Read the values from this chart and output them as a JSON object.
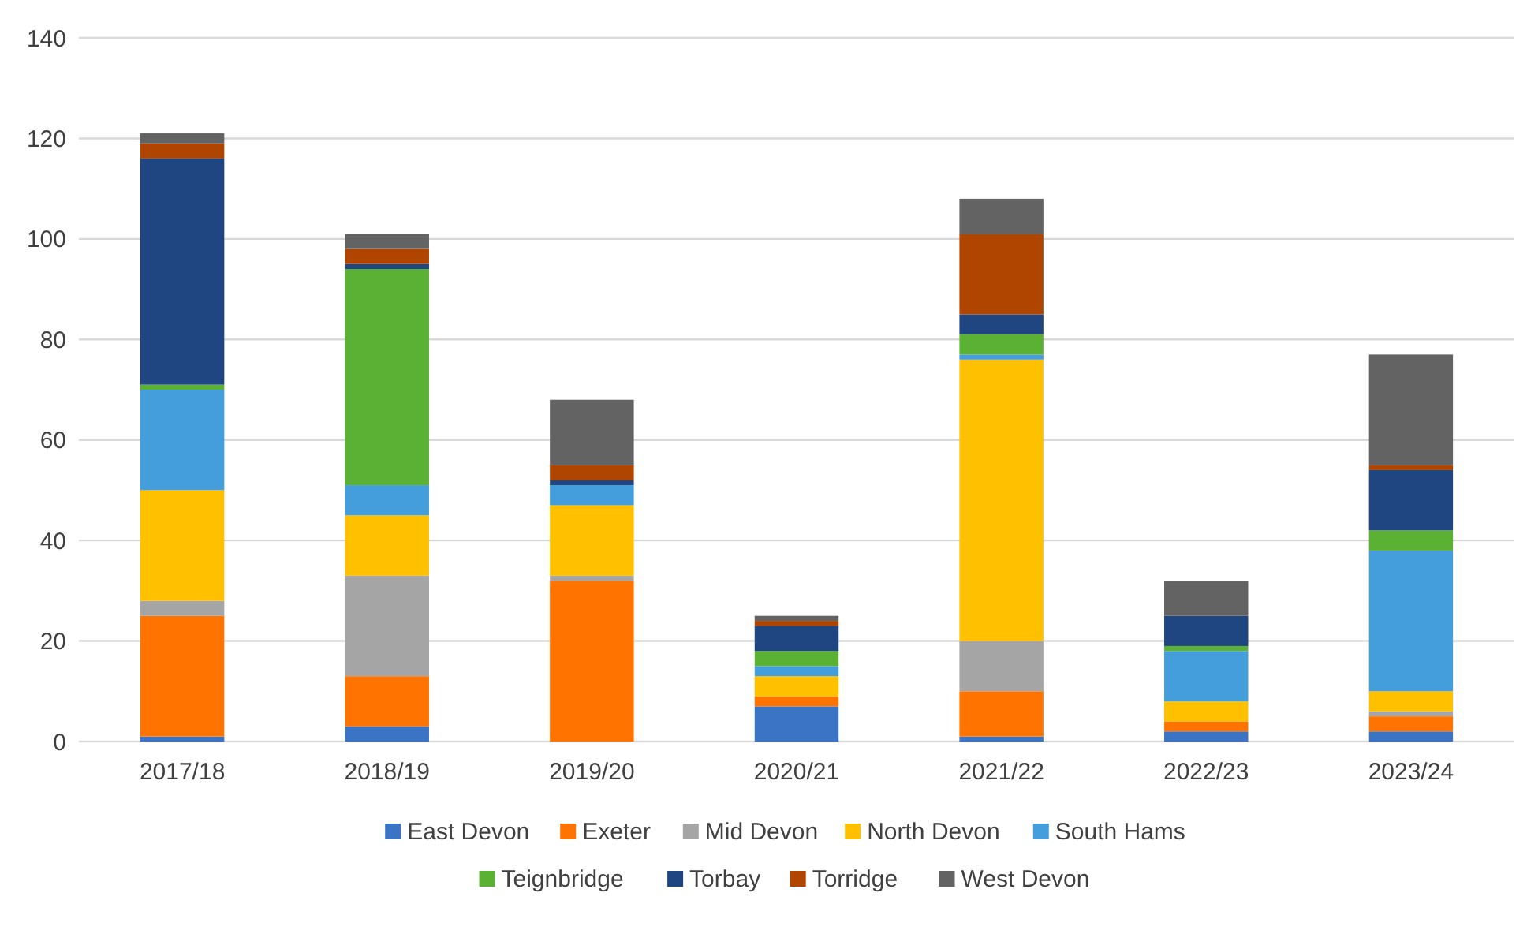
{
  "chart_data": {
    "type": "bar",
    "stacked": true,
    "categories": [
      "2017/18",
      "2018/19",
      "2019/20",
      "2020/21",
      "2021/22",
      "2022/23",
      "2023/24"
    ],
    "series": [
      {
        "name": "East Devon",
        "color": "#3b74c4",
        "values": [
          1,
          3,
          0,
          7,
          1,
          2,
          2
        ]
      },
      {
        "name": "Exeter",
        "color": "#ff7400",
        "values": [
          24,
          10,
          32,
          2,
          9,
          2,
          3
        ]
      },
      {
        "name": "Mid Devon",
        "color": "#a5a5a5",
        "values": [
          3,
          20,
          1,
          0,
          10,
          0,
          1
        ]
      },
      {
        "name": "North Devon",
        "color": "#ffc000",
        "values": [
          22,
          12,
          14,
          4,
          56,
          4,
          4
        ]
      },
      {
        "name": "South Hams",
        "color": "#449edb",
        "values": [
          20,
          6,
          4,
          2,
          1,
          10,
          28
        ]
      },
      {
        "name": "Teignbridge",
        "color": "#5bb134",
        "values": [
          1,
          43,
          0,
          3,
          4,
          1,
          4
        ]
      },
      {
        "name": "Torbay",
        "color": "#1f4680",
        "values": [
          45,
          1,
          1,
          5,
          4,
          6,
          12
        ]
      },
      {
        "name": "Torridge",
        "color": "#b04500",
        "values": [
          3,
          3,
          3,
          1,
          16,
          0,
          1
        ]
      },
      {
        "name": "West Devon",
        "color": "#636363",
        "values": [
          2,
          3,
          13,
          1,
          7,
          7,
          22
        ]
      }
    ],
    "ylim": [
      0,
      140
    ],
    "yticks": [
      0,
      20,
      40,
      60,
      80,
      100,
      120,
      140
    ],
    "grid": "y",
    "legend": "bottom"
  }
}
